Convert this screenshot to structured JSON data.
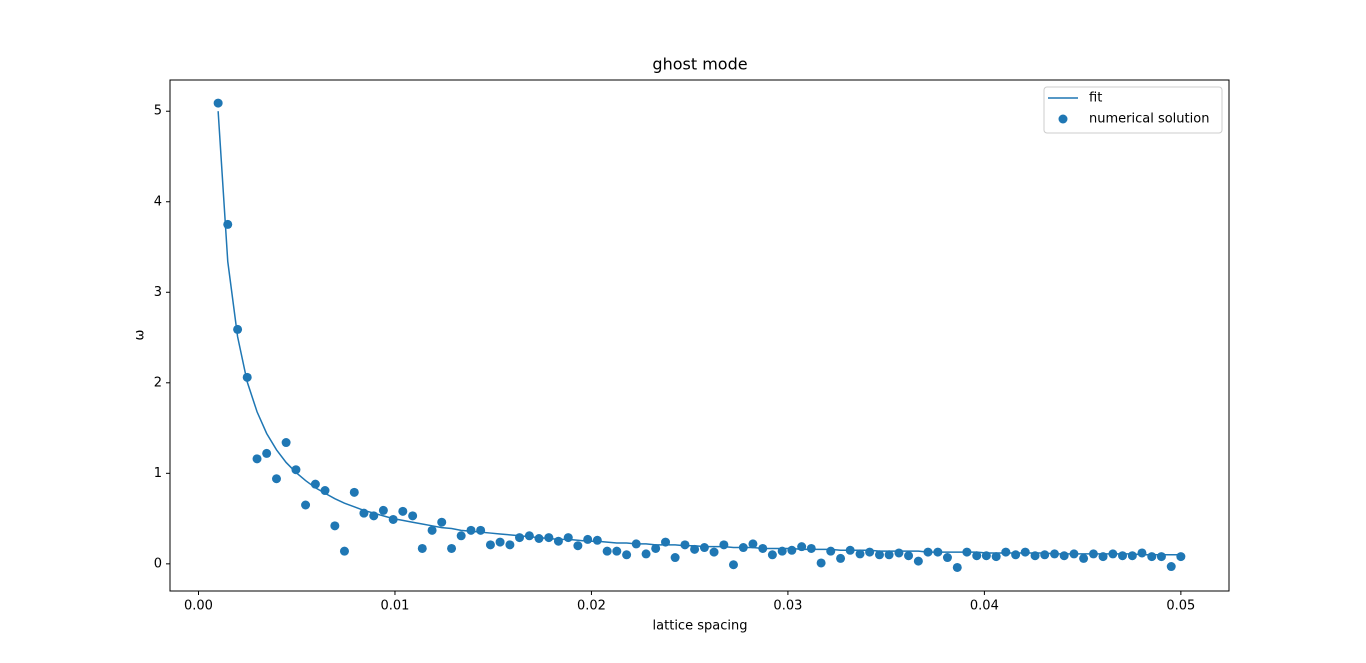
{
  "chart_data": {
    "type": "scatter",
    "title": "ghost mode",
    "xlabel": "lattice spacing",
    "ylabel": "ω",
    "x": [
      0.001,
      0.00149,
      0.00199,
      0.00248,
      0.00298,
      0.00347,
      0.00397,
      0.00446,
      0.00496,
      0.00545,
      0.00595,
      0.00644,
      0.00694,
      0.00743,
      0.00793,
      0.00842,
      0.00892,
      0.00941,
      0.00991,
      0.0104,
      0.0109,
      0.01139,
      0.01189,
      0.01238,
      0.01288,
      0.01337,
      0.01387,
      0.01436,
      0.01486,
      0.01535,
      0.01585,
      0.01634,
      0.01684,
      0.01733,
      0.01783,
      0.01832,
      0.01882,
      0.01931,
      0.01981,
      0.0203,
      0.0208,
      0.02129,
      0.02179,
      0.02228,
      0.02278,
      0.02327,
      0.02377,
      0.02426,
      0.02476,
      0.02525,
      0.02575,
      0.02624,
      0.02674,
      0.02723,
      0.02773,
      0.02822,
      0.02872,
      0.02921,
      0.02971,
      0.0302,
      0.0307,
      0.03119,
      0.03169,
      0.03218,
      0.03268,
      0.03317,
      0.03367,
      0.03416,
      0.03466,
      0.03515,
      0.03565,
      0.03614,
      0.03664,
      0.03713,
      0.03763,
      0.03812,
      0.03862,
      0.03911,
      0.03961,
      0.0401,
      0.0406,
      0.04109,
      0.04159,
      0.04208,
      0.04258,
      0.04307,
      0.04357,
      0.04406,
      0.04456,
      0.04505,
      0.04555,
      0.04604,
      0.04654,
      0.04703,
      0.04753,
      0.04802,
      0.04852,
      0.04901,
      0.04951,
      0.05
    ],
    "series": [
      {
        "name": "fit",
        "type": "line",
        "color": "#1f77b4",
        "values": [
          5.0,
          3.34,
          2.51,
          2.01,
          1.68,
          1.44,
          1.26,
          1.12,
          1.01,
          0.92,
          0.84,
          0.78,
          0.72,
          0.67,
          0.63,
          0.59,
          0.56,
          0.53,
          0.5,
          0.48,
          0.46,
          0.44,
          0.42,
          0.4,
          0.39,
          0.37,
          0.36,
          0.35,
          0.34,
          0.33,
          0.32,
          0.31,
          0.3,
          0.29,
          0.28,
          0.27,
          0.27,
          0.26,
          0.25,
          0.25,
          0.24,
          0.23,
          0.23,
          0.22,
          0.22,
          0.21,
          0.21,
          0.21,
          0.2,
          0.2,
          0.19,
          0.19,
          0.19,
          0.18,
          0.18,
          0.18,
          0.17,
          0.17,
          0.17,
          0.17,
          0.16,
          0.16,
          0.16,
          0.16,
          0.15,
          0.15,
          0.15,
          0.15,
          0.14,
          0.14,
          0.14,
          0.14,
          0.14,
          0.13,
          0.13,
          0.13,
          0.13,
          0.13,
          0.13,
          0.12,
          0.12,
          0.12,
          0.12,
          0.12,
          0.12,
          0.12,
          0.11,
          0.11,
          0.11,
          0.11,
          0.11,
          0.11,
          0.11,
          0.11,
          0.11,
          0.1,
          0.1,
          0.1,
          0.1,
          0.1
        ]
      },
      {
        "name": "numerical solution",
        "type": "scatter",
        "color": "#1f77b4",
        "values": [
          5.09,
          3.75,
          2.59,
          2.06,
          1.16,
          1.22,
          0.94,
          1.34,
          1.04,
          0.65,
          0.88,
          0.81,
          0.42,
          0.14,
          0.79,
          0.56,
          0.53,
          0.59,
          0.49,
          0.58,
          0.53,
          0.17,
          0.37,
          0.46,
          0.17,
          0.31,
          0.37,
          0.37,
          0.21,
          0.24,
          0.21,
          0.29,
          0.31,
          0.28,
          0.29,
          0.25,
          0.29,
          0.2,
          0.27,
          0.26,
          0.14,
          0.14,
          0.1,
          0.22,
          0.11,
          0.17,
          0.24,
          0.07,
          0.21,
          0.16,
          0.18,
          0.13,
          0.21,
          -0.01,
          0.18,
          0.22,
          0.17,
          0.1,
          0.14,
          0.15,
          0.19,
          0.17,
          0.01,
          0.14,
          0.06,
          0.15,
          0.11,
          0.13,
          0.1,
          0.1,
          0.12,
          0.09,
          0.03,
          0.13,
          0.13,
          0.07,
          -0.04,
          0.13,
          0.09,
          0.09,
          0.08,
          0.13,
          0.1,
          0.13,
          0.09,
          0.1,
          0.11,
          0.09,
          0.11,
          0.06,
          0.11,
          0.08,
          0.11,
          0.09,
          0.09,
          0.12,
          0.08,
          0.08,
          -0.03,
          0.08
        ]
      }
    ],
    "xlim": [
      -0.00145,
      0.05245
    ],
    "xticks": [
      {
        "value": 0,
        "label": "0.00"
      },
      {
        "value": 0.01,
        "label": "0.01"
      },
      {
        "value": 0.02,
        "label": "0.02"
      },
      {
        "value": 0.03,
        "label": "0.03"
      },
      {
        "value": 0.04,
        "label": "0.04"
      },
      {
        "value": 0.05,
        "label": "0.05"
      }
    ],
    "ylim": [
      -0.3,
      5.345
    ],
    "yticks": [
      0,
      1,
      2,
      3,
      4,
      5
    ],
    "grid": false,
    "legend": "upper right"
  }
}
